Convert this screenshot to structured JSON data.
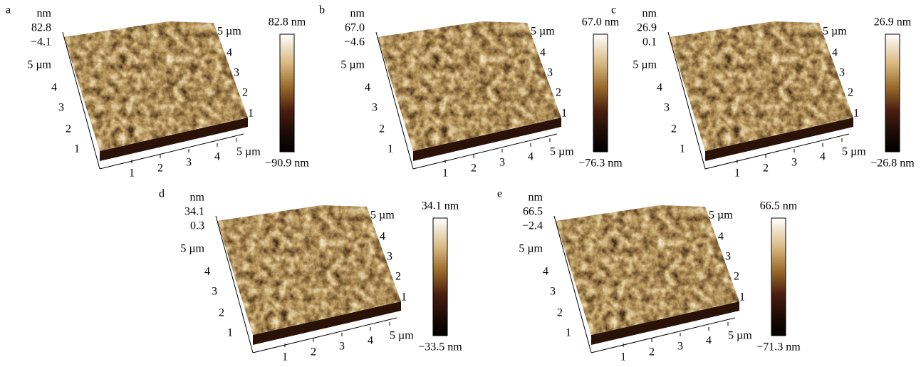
{
  "panels": [
    {
      "label": "a",
      "z_unit": "nm",
      "z_ticks": [
        "82.8",
        "−4.1"
      ],
      "left_axis": [
        "5 µm",
        "4",
        "3",
        "2",
        "1"
      ],
      "bottom_axis": [
        "1",
        "2",
        "3",
        "4",
        "5 µm"
      ],
      "right_axis": [
        "5 µm",
        "4",
        "3",
        "2",
        "1"
      ],
      "colorbar_max": "82.8 nm",
      "colorbar_min": "−90.9 nm"
    },
    {
      "label": "b",
      "z_unit": "nm",
      "z_ticks": [
        "67.0",
        "−4.6"
      ],
      "left_axis": [
        "5 µm",
        "4",
        "3",
        "2",
        "1"
      ],
      "bottom_axis": [
        "1",
        "2",
        "3",
        "4",
        "5 µm"
      ],
      "right_axis": [
        "5 µm",
        "4",
        "3",
        "2",
        "1"
      ],
      "colorbar_max": "67.0 nm",
      "colorbar_min": "−76.3 nm"
    },
    {
      "label": "c",
      "z_unit": "nm",
      "z_ticks": [
        "26.9",
        "0.1"
      ],
      "left_axis": [
        "5 µm",
        "4",
        "3",
        "2",
        "1"
      ],
      "bottom_axis": [
        "1",
        "2",
        "3",
        "4",
        "5 µm"
      ],
      "right_axis": [
        "5 µm",
        "4",
        "3",
        "2",
        "1"
      ],
      "colorbar_max": "26.9 nm",
      "colorbar_min": "−26.8 nm"
    },
    {
      "label": "d",
      "z_unit": "nm",
      "z_ticks": [
        "34.1",
        "0.3"
      ],
      "left_axis": [
        "5 µm",
        "4",
        "3",
        "2",
        "1"
      ],
      "bottom_axis": [
        "1",
        "2",
        "3",
        "4",
        "5 µm"
      ],
      "right_axis": [
        "5 µm",
        "4",
        "3",
        "2",
        "1"
      ],
      "colorbar_max": "34.1 nm",
      "colorbar_min": "−33.5 nm"
    },
    {
      "label": "e",
      "z_unit": "nm",
      "z_ticks": [
        "66.5",
        "−2.4"
      ],
      "left_axis": [
        "5 µm",
        "4",
        "3",
        "2",
        "1"
      ],
      "bottom_axis": [
        "1",
        "2",
        "3",
        "4",
        "5 µm"
      ],
      "right_axis": [
        "5 µm",
        "4",
        "3",
        "2",
        "1"
      ],
      "colorbar_max": "66.5 nm",
      "colorbar_min": "−71.3 nm"
    }
  ]
}
